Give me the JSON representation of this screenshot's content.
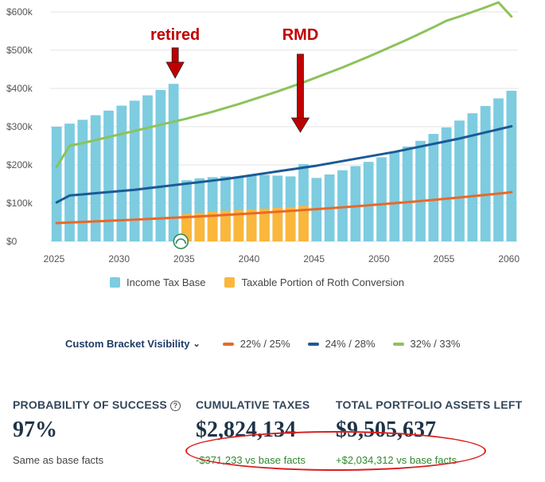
{
  "chart_data": {
    "type": "bar",
    "x": [
      2025,
      2026,
      2027,
      2028,
      2029,
      2030,
      2031,
      2032,
      2033,
      2034,
      2035,
      2036,
      2037,
      2038,
      2039,
      2040,
      2041,
      2042,
      2043,
      2044,
      2045,
      2046,
      2047,
      2048,
      2049,
      2050,
      2051,
      2052,
      2053,
      2054,
      2055,
      2056,
      2057,
      2058,
      2059,
      2060
    ],
    "x_ticks": [
      "2025",
      "2030",
      "2035",
      "2040",
      "2045",
      "2050",
      "2055",
      "2060"
    ],
    "y_ticks": [
      "$0",
      "$100k",
      "$200k",
      "$300k",
      "$400k",
      "$500k",
      "$600k"
    ],
    "ylim": [
      0,
      600000
    ],
    "grid": true,
    "series": [
      {
        "name": "Income Tax Base",
        "kind": "bar",
        "color": "#7dcce0",
        "values": [
          300000,
          308000,
          318000,
          330000,
          342000,
          355000,
          368000,
          382000,
          396000,
          412000,
          160000,
          165000,
          168000,
          170000,
          170000,
          172000,
          174000,
          172000,
          170000,
          202000,
          166000,
          175000,
          186000,
          197000,
          208000,
          220000,
          234000,
          248000,
          263000,
          281000,
          298000,
          316000,
          335000,
          354000,
          374000,
          394000
        ]
      },
      {
        "name": "Taxable Portion of Roth Conversion",
        "kind": "bar",
        "color": "#fbb73c",
        "values": [
          0,
          0,
          0,
          0,
          0,
          0,
          0,
          0,
          0,
          0,
          72000,
          75000,
          78000,
          80000,
          82000,
          84000,
          86000,
          88000,
          90000,
          93000,
          0,
          0,
          0,
          0,
          0,
          0,
          0,
          0,
          0,
          0,
          0,
          0,
          0,
          0,
          0,
          0
        ]
      },
      {
        "name": "22% / 25%",
        "kind": "line",
        "color": "#e8692a",
        "values": [
          48000,
          49400,
          50800,
          52300,
          53800,
          55300,
          56900,
          58500,
          60200,
          61900,
          63600,
          65400,
          67300,
          69200,
          71200,
          73200,
          75300,
          77500,
          79700,
          82000,
          84300,
          86700,
          89200,
          91700,
          94400,
          97100,
          99900,
          102700,
          105600,
          108600,
          111700,
          114900,
          118200,
          121600,
          125000,
          128600
        ]
      },
      {
        "name": "24% / 28%",
        "kind": "line",
        "color": "#1c5a96",
        "values": [
          102000,
          120000,
          123000,
          126000,
          129000,
          132000,
          135000,
          139000,
          143000,
          147000,
          151000,
          155000,
          159000,
          163000,
          168000,
          173000,
          178000,
          183000,
          188000,
          193000,
          198000,
          204000,
          210000,
          216000,
          222000,
          228000,
          234000,
          241000,
          248000,
          255000,
          262000,
          269000,
          277000,
          285000,
          293000,
          301000
        ]
      },
      {
        "name": "32% / 33%",
        "kind": "line",
        "color": "#8cc35b",
        "values": [
          195000,
          250000,
          257000,
          265000,
          273000,
          281000,
          289000,
          297000,
          305000,
          313000,
          321000,
          330000,
          339000,
          349000,
          359000,
          370000,
          381000,
          392000,
          404000,
          416000,
          429000,
          442000,
          455000,
          469000,
          483000,
          498000,
          513000,
          528000,
          544000,
          560000,
          577000,
          588000,
          600000,
          612000,
          625000,
          588000
        ]
      }
    ],
    "annotations": [
      {
        "text": "retired",
        "x": 2034,
        "color": "#c00000"
      },
      {
        "text": "RMD",
        "x": 2044,
        "color": "#c00000"
      }
    ]
  },
  "legend": {
    "income_tax_base": "Income Tax Base",
    "roth_conversion": "Taxable Portion of Roth Conversion"
  },
  "brackets": {
    "toggle_label": "Custom Bracket Visibility",
    "items": [
      "22% / 25%",
      "24% / 28%",
      "32% / 33%"
    ]
  },
  "stats": {
    "probability": {
      "label": "PROBABILITY OF SUCCESS",
      "value": "97%",
      "note": "Same as base facts"
    },
    "taxes": {
      "label": "CUMULATIVE TAXES",
      "value": "$2,824,134",
      "note": "-$371,233 vs base facts"
    },
    "assets": {
      "label": "TOTAL PORTFOLIO ASSETS LEFT",
      "value": "$9,505,637",
      "note": "+$2,034,312 vs base facts"
    }
  },
  "colors": {
    "bar": "#7dcce0",
    "roth": "#fbb73c",
    "annotation": "#c00000",
    "ellipse": "#d81e1e"
  }
}
